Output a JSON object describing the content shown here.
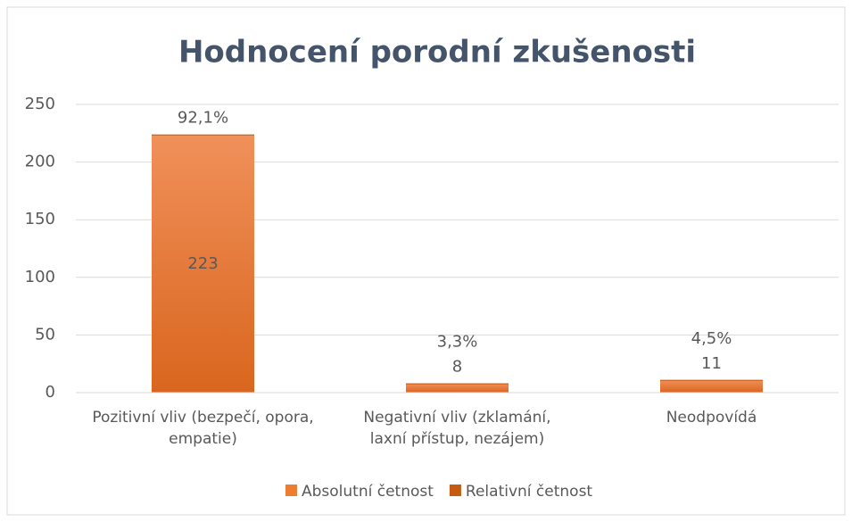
{
  "chart_data": {
    "type": "stacked_bar",
    "title": "Hodnocení porodní zkušenosti",
    "categories": [
      "Pozitivní vliv (bezpečí, opora, empatie)",
      "Negativní vliv (zklamání, laxní přístup, nezájem)",
      "Neodpovídá"
    ],
    "series": [
      {
        "name": "Absolutní četnost",
        "color": "#ed7d31",
        "values": [
          223,
          8,
          11
        ]
      },
      {
        "name": "Relativní četnost",
        "color": "#c55a11",
        "values": [
          0.921,
          0.033,
          0.045
        ],
        "value_labels": [
          "92,1%",
          "3,3%",
          "4,5%"
        ]
      }
    ],
    "ylim": [
      0,
      250
    ],
    "yticks": [
      0,
      50,
      100,
      150,
      200,
      250
    ],
    "grid": true,
    "legend": "bottom"
  }
}
